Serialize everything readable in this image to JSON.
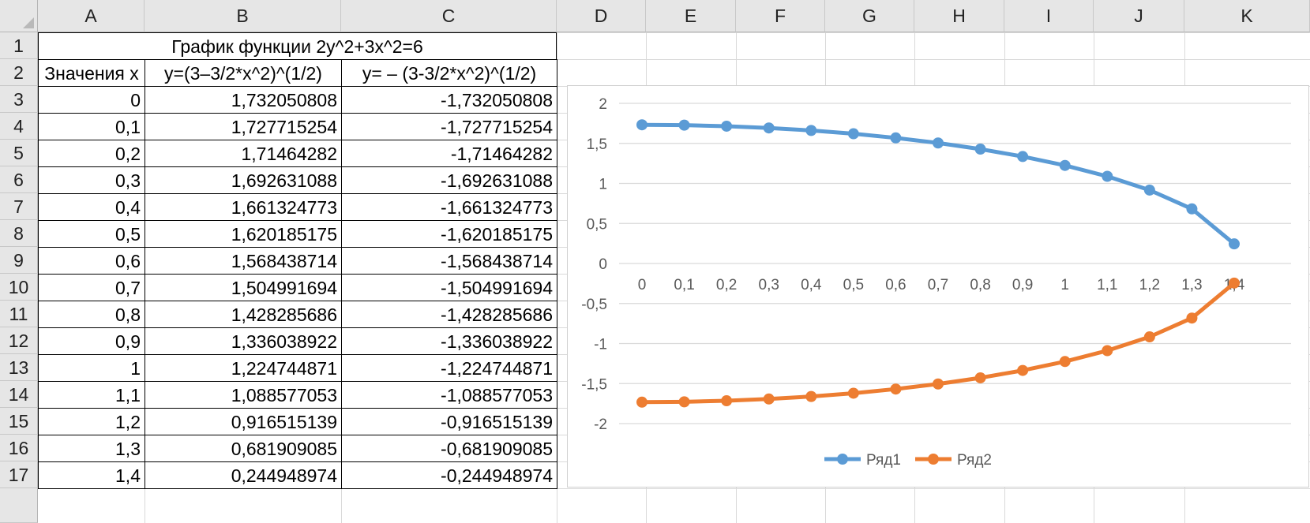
{
  "columns": [
    "A",
    "B",
    "C",
    "D",
    "E",
    "F",
    "G",
    "H",
    "I",
    "J",
    "K"
  ],
  "rows": [
    "1",
    "2",
    "3",
    "4",
    "5",
    "6",
    "7",
    "8",
    "9",
    "10",
    "11",
    "12",
    "13",
    "14",
    "15",
    "16",
    "17"
  ],
  "title_cell": "График функции 2y^2+3x^2=6",
  "headers": {
    "a": "Значения x",
    "b": "y=(3–3/2*x^2)^(1/2)",
    "c": "y= – (3-3/2*x^2)^(1/2)"
  },
  "table": [
    {
      "x": "0",
      "y1": "1,732050808",
      "y2": "-1,732050808"
    },
    {
      "x": "0,1",
      "y1": "1,727715254",
      "y2": "-1,727715254"
    },
    {
      "x": "0,2",
      "y1": "1,71464282",
      "y2": "-1,71464282"
    },
    {
      "x": "0,3",
      "y1": "1,692631088",
      "y2": "-1,692631088"
    },
    {
      "x": "0,4",
      "y1": "1,661324773",
      "y2": "-1,661324773"
    },
    {
      "x": "0,5",
      "y1": "1,620185175",
      "y2": "-1,620185175"
    },
    {
      "x": "0,6",
      "y1": "1,568438714",
      "y2": "-1,568438714"
    },
    {
      "x": "0,7",
      "y1": "1,504991694",
      "y2": "-1,504991694"
    },
    {
      "x": "0,8",
      "y1": "1,428285686",
      "y2": "-1,428285686"
    },
    {
      "x": "0,9",
      "y1": "1,336038922",
      "y2": "-1,336038922"
    },
    {
      "x": "1",
      "y1": "1,224744871",
      "y2": "-1,224744871"
    },
    {
      "x": "1,1",
      "y1": "1,088577053",
      "y2": "-1,088577053"
    },
    {
      "x": "1,2",
      "y1": "0,916515139",
      "y2": "-0,916515139"
    },
    {
      "x": "1,3",
      "y1": "0,681909085",
      "y2": "-0,681909085"
    },
    {
      "x": "1,4",
      "y1": "0,244948974",
      "y2": "-0,244948974"
    }
  ],
  "chart_data": {
    "type": "line",
    "categories": [
      "0",
      "0,1",
      "0,2",
      "0,3",
      "0,4",
      "0,5",
      "0,6",
      "0,7",
      "0,8",
      "0,9",
      "1",
      "1,1",
      "1,2",
      "1,3",
      "1,4"
    ],
    "series": [
      {
        "name": "Ряд1",
        "color": "#5b9bd5",
        "values": [
          1.732050808,
          1.727715254,
          1.71464282,
          1.692631088,
          1.661324773,
          1.620185175,
          1.568438714,
          1.504991694,
          1.428285686,
          1.336038922,
          1.224744871,
          1.088577053,
          0.916515139,
          0.681909085,
          0.244948974
        ]
      },
      {
        "name": "Ряд2",
        "color": "#ed7d31",
        "values": [
          -1.732050808,
          -1.727715254,
          -1.71464282,
          -1.692631088,
          -1.661324773,
          -1.620185175,
          -1.568438714,
          -1.504991694,
          -1.428285686,
          -1.336038922,
          -1.224744871,
          -1.088577053,
          -0.916515139,
          -0.681909085,
          -0.244948974
        ]
      }
    ],
    "ylim": [
      -2,
      2
    ],
    "yticks": [
      "2",
      "1,5",
      "1",
      "0,5",
      "0",
      "-0,5",
      "-1",
      "-1,5",
      "-2"
    ],
    "ytick_values": [
      2,
      1.5,
      1,
      0.5,
      0,
      -0.5,
      -1,
      -1.5,
      -2
    ],
    "grid": true,
    "legend": "bottom"
  }
}
